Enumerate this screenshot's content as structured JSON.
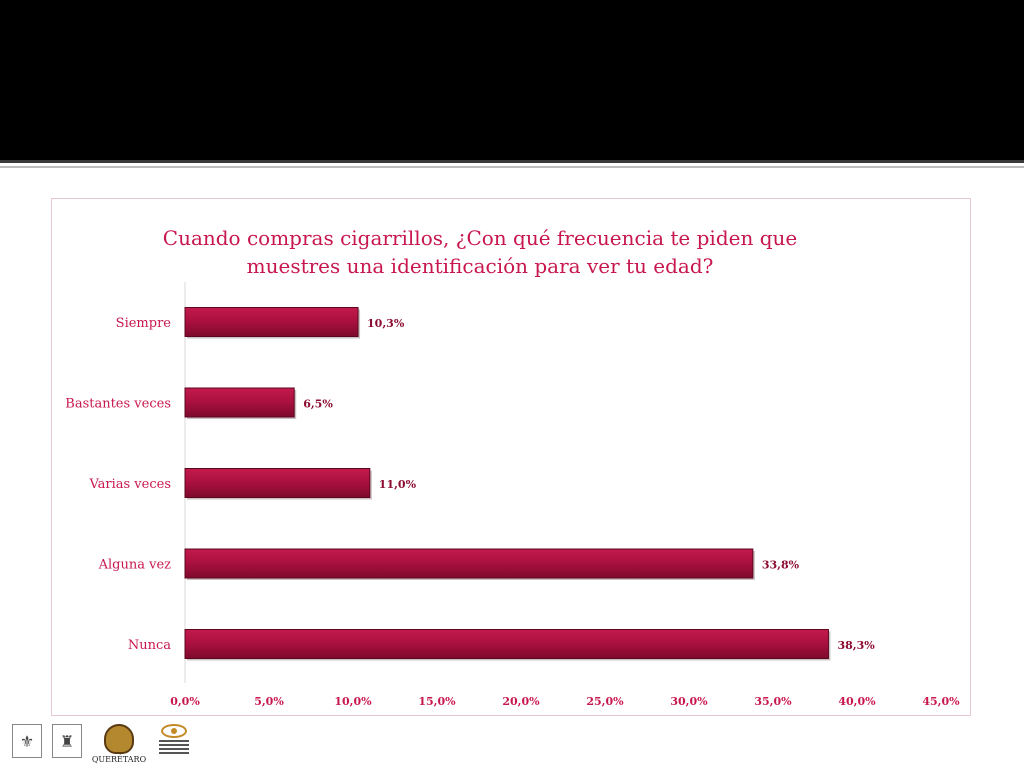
{
  "slide": {
    "colors": {
      "band": "#000000",
      "accent": "#c8174e",
      "bar_fill": "#a8103f",
      "bar_edge": "#5c0620"
    }
  },
  "chart_data": {
    "type": "bar",
    "orientation": "horizontal",
    "title": "Cuando compras cigarrillos, ¿Con qué frecuencia te piden que\nmuestres una identificación para ver tu edad?",
    "categories": [
      "Siempre",
      "Bastantes veces",
      "Varias veces",
      "Alguna vez",
      "Nunca"
    ],
    "values": [
      10.3,
      6.5,
      11.0,
      33.8,
      38.3
    ],
    "value_labels": [
      "10,3%",
      "6,5%",
      "11,0%",
      "33,8%",
      "38,3%"
    ],
    "x_ticks": [
      0,
      5,
      10,
      15,
      20,
      25,
      30,
      35,
      40,
      45
    ],
    "x_tick_labels": [
      "0,0%",
      "5,0%",
      "10,0%",
      "15,0%",
      "20,0%",
      "25,0%",
      "30,0%",
      "35,0%",
      "40,0%",
      "45,0%"
    ],
    "xlim": [
      0,
      45
    ],
    "xlabel": "",
    "ylabel": "",
    "grid": false,
    "legend": "none"
  },
  "footer": {
    "logo_qro_text": "QUERÉTARO",
    "icons": [
      "crest-icon",
      "crest-icon",
      "queretaro-seal-icon",
      "observatory-eye-icon"
    ]
  }
}
